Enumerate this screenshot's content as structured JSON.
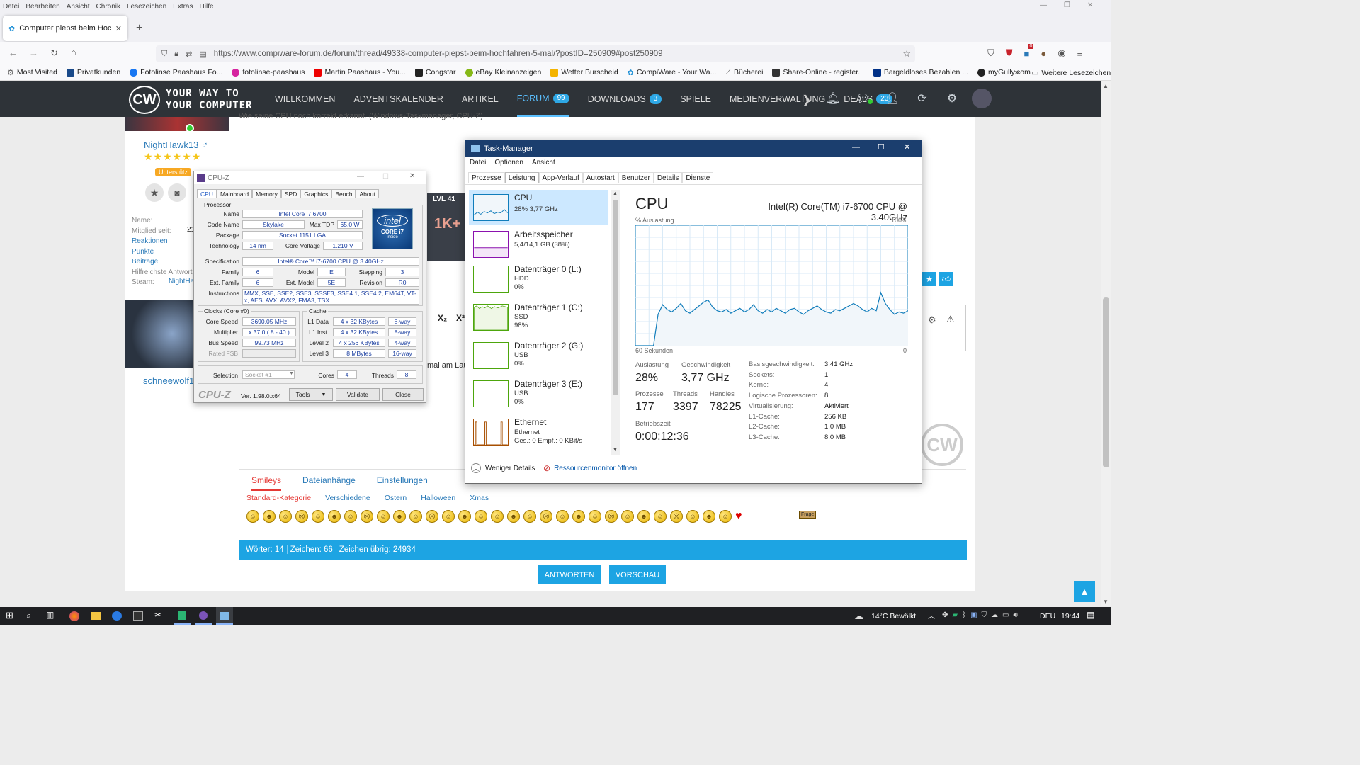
{
  "browser": {
    "menu": [
      "Datei",
      "Bearbeiten",
      "Ansicht",
      "Chronik",
      "Lesezeichen",
      "Extras",
      "Hilfe"
    ],
    "tab_title": "Computer piepst beim Hochfa",
    "url": "https://www.compiware-forum.de/forum/thread/49338-computer-piepst-beim-hochfahren-5-mal/?postID=250909#post250909",
    "bookmarks": [
      "Most Visited",
      "Privatkunden",
      "Fotolinse Paashaus Fo...",
      "fotolinse-paashaus",
      "Martin Paashaus - You...",
      "Congstar",
      "eBay Kleinanzeigen",
      "Wetter Burscheid",
      "CompiWare - Your Wa...",
      "Bücherei",
      "Share-Online - register...",
      "Bargeldloses Bezahlen ...",
      "myGully.com"
    ],
    "more_bookmarks": "Weitere Lesezeichen",
    "notification_count": "0"
  },
  "site": {
    "slogan_line1": "YOUR WAY TO",
    "slogan_line2": "YOUR COMPUTER",
    "logo_text": "CW",
    "nav": [
      {
        "label": "WILLKOMMEN",
        "badge": ""
      },
      {
        "label": "ADVENTSKALENDER",
        "badge": ""
      },
      {
        "label": "ARTIKEL",
        "badge": ""
      },
      {
        "label": "FORUM",
        "badge": "99"
      },
      {
        "label": "DOWNLOADS",
        "badge": "3"
      },
      {
        "label": "SPIELE",
        "badge": ""
      },
      {
        "label": "MEDIENVERWALTUNG",
        "badge": ""
      },
      {
        "label": "DEALS",
        "badge": "23"
      }
    ]
  },
  "user": {
    "name": "NightHawk13 ♂",
    "rank_badge": "Unterstütz",
    "fields": [
      "Name:",
      "Mitglied seit:",
      "Reaktionen",
      "Punkte",
      "Beiträge",
      "Hilfreichste Antwort",
      "Steam:"
    ],
    "member_since_partial": "21",
    "steam_partial": "NightHa",
    "second_user": "schneewolf1",
    "lvl": "LVL 41",
    "ik_text": "1K+"
  },
  "post": {
    "partial_text_top": "Wie seine CPU noch korrekt erkannt. (Windows-Taskmanager, CPU-Z)",
    "partial_text_mid": "mal am Lau",
    "sub_sup": [
      "X₂",
      "X²"
    ]
  },
  "editor": {
    "tabs": [
      "Smileys",
      "Dateianhänge",
      "Einstellungen"
    ],
    "categories": [
      "Standard-Kategorie",
      "Verschiedene",
      "Ostern",
      "Halloween",
      "Xmas"
    ],
    "counter": [
      "Wörter: 14",
      "Zeichen: 66",
      "Zeichen übrig: 24934"
    ],
    "reply_button": "ANTWORTEN",
    "preview_button": "VORSCHAU",
    "frage_label": "Frage"
  },
  "cpuz": {
    "title": "CPU-Z",
    "tabs": [
      "CPU",
      "Mainboard",
      "Memory",
      "SPD",
      "Graphics",
      "Bench",
      "About"
    ],
    "processor_group": "Processor",
    "name_label": "Name",
    "name": "Intel Core i7 6700",
    "codename_label": "Code Name",
    "codename": "Skylake",
    "maxtdp_label": "Max TDP",
    "maxtdp": "65.0 W",
    "package_label": "Package",
    "package": "Socket 1151 LGA",
    "tech_label": "Technology",
    "tech": "14 nm",
    "cv_label": "Core Voltage",
    "cv": "1.210 V",
    "spec_label": "Specification",
    "spec": "Intel® Core™ i7-6700 CPU @ 3.40GHz",
    "family_label": "Family",
    "family": "6",
    "model_label": "Model",
    "model": "E",
    "stepping_label": "Stepping",
    "stepping": "3",
    "extfamily_label": "Ext. Family",
    "extfamily": "6",
    "extmodel_label": "Ext. Model",
    "extmodel": "5E",
    "revision_label": "Revision",
    "revision": "R0",
    "instr_label": "Instructions",
    "instr": "MMX, SSE, SSE2, SSE3, SSSE3, SSE4.1, SSE4.2, EM64T, VT-x, AES, AVX, AVX2, FMA3, TSX",
    "clocks_group": "Clocks (Core #0)",
    "corespeed_label": "Core Speed",
    "corespeed": "3690.05 MHz",
    "mult_label": "Multiplier",
    "mult": "x 37.0 ( 8 - 40 )",
    "bus_label": "Bus Speed",
    "bus": "99.73 MHz",
    "ratedfsb_label": "Rated FSB",
    "cache_group": "Cache",
    "l1d_label": "L1 Data",
    "l1d": "4 x 32 KBytes",
    "l1d_way": "8-way",
    "l1i_label": "L1 Inst.",
    "l1i": "4 x 32 KBytes",
    "l1i_way": "8-way",
    "l2_label": "Level 2",
    "l2": "4 x 256 KBytes",
    "l2_way": "4-way",
    "l3_label": "Level 3",
    "l3": "8 MBytes",
    "l3_way": "16-way",
    "selection_label": "Selection",
    "selection": "Socket #1",
    "cores_label": "Cores",
    "cores": "4",
    "threads_label": "Threads",
    "threads": "8",
    "brand": "CPU-Z",
    "version": "Ver. 1.98.0.x64",
    "tools": "Tools",
    "validate": "Validate",
    "close": "Close",
    "intel_logo": "intel",
    "intel_sub": "CORE i7",
    "intel_inside": "inside"
  },
  "taskmgr": {
    "title": "Task-Manager",
    "menu": [
      "Datei",
      "Optionen",
      "Ansicht"
    ],
    "tabs": [
      "Prozesse",
      "Leistung",
      "App-Verlauf",
      "Autostart",
      "Benutzer",
      "Details",
      "Dienste"
    ],
    "items": [
      {
        "name": "CPU",
        "sub1": "28% 3,77 GHz",
        "sub2": "",
        "sub3": ""
      },
      {
        "name": "Arbeitsspeicher",
        "sub1": "5,4/14,1 GB (38%)",
        "sub2": "",
        "sub3": ""
      },
      {
        "name": "Datenträger 0 (L:)",
        "sub1": "HDD",
        "sub2": "0%",
        "sub3": ""
      },
      {
        "name": "Datenträger 1 (C:)",
        "sub1": "SSD",
        "sub2": "98%",
        "sub3": ""
      },
      {
        "name": "Datenträger 2 (G:)",
        "sub1": "USB",
        "sub2": "0%",
        "sub3": ""
      },
      {
        "name": "Datenträger 3 (E:)",
        "sub1": "USB",
        "sub2": "0%",
        "sub3": ""
      },
      {
        "name": "Ethernet",
        "sub1": "Ethernet",
        "sub2": "Ges.: 0 Empf.: 0 KBit/s",
        "sub3": ""
      }
    ],
    "header": "CPU",
    "cpu_model": "Intel(R) Core(TM) i7-6700 CPU @ 3.40GHz",
    "graph_label": "% Auslastung",
    "graph_max": "100%",
    "graph_time": "60 Sekunden",
    "graph_zero": "0",
    "util_label": "Auslastung",
    "util": "28%",
    "speed_label": "Geschwindigkeit",
    "speed": "3,77 GHz",
    "proc_label": "Prozesse",
    "proc": "177",
    "threads_label": "Threads",
    "threads": "3397",
    "handles_label": "Handles",
    "handles": "78225",
    "uptime_label": "Betriebszeit",
    "uptime": "0:00:12:36",
    "specs": [
      {
        "k": "Basisgeschwindigkeit:",
        "v": "3,41 GHz"
      },
      {
        "k": "Sockets:",
        "v": "1"
      },
      {
        "k": "Kerne:",
        "v": "4"
      },
      {
        "k": "Logische Prozessoren:",
        "v": "8"
      },
      {
        "k": "Virtualisierung:",
        "v": "Aktiviert"
      },
      {
        "k": "L1-Cache:",
        "v": "256 KB"
      },
      {
        "k": "L2-Cache:",
        "v": "1,0 MB"
      },
      {
        "k": "L3-Cache:",
        "v": "8,0 MB"
      }
    ],
    "fewer_details": "Weniger Details",
    "resmon": "Ressourcenmonitor öffnen",
    "cpu_history_pct": [
      0,
      0,
      0,
      0,
      0,
      26,
      34,
      30,
      28,
      31,
      35,
      29,
      27,
      30,
      33,
      36,
      38,
      32,
      29,
      28,
      30,
      27,
      29,
      31,
      28,
      30,
      34,
      29,
      27,
      30,
      28,
      31,
      29,
      27,
      30,
      31,
      28,
      26,
      29,
      31,
      33,
      30,
      28,
      27,
      30,
      29,
      31,
      33,
      35,
      33,
      30,
      28,
      31,
      29,
      44,
      35,
      30,
      26,
      28,
      27,
      29
    ]
  },
  "taskbar": {
    "weather": "14°C  Bewölkt",
    "lang": "DEU",
    "time": "19:44"
  },
  "colors": {
    "accent": "#1da4e3",
    "header": "#2e3338",
    "tm_title": "#1b3e6e",
    "cpu_graph": "#117dbb"
  }
}
